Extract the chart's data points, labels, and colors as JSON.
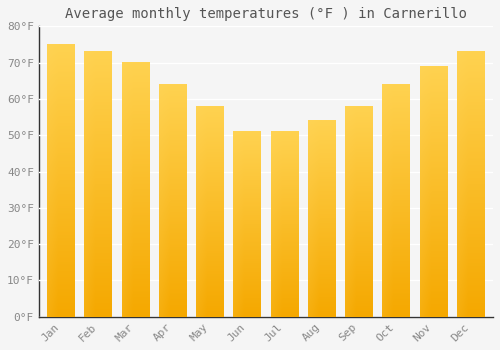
{
  "title": "Average monthly temperatures (°F ) in Carnerillo",
  "months": [
    "Jan",
    "Feb",
    "Mar",
    "Apr",
    "May",
    "Jun",
    "Jul",
    "Aug",
    "Sep",
    "Oct",
    "Nov",
    "Dec"
  ],
  "values": [
    75,
    73,
    70,
    64,
    58,
    51,
    51,
    54,
    58,
    64,
    69,
    73
  ],
  "bar_color_bottom": "#F5A800",
  "bar_color_top": "#FFD966",
  "bar_color_left": "#FFCC44",
  "ylim": [
    0,
    80
  ],
  "yticks": [
    0,
    10,
    20,
    30,
    40,
    50,
    60,
    70,
    80
  ],
  "ytick_labels": [
    "0°F",
    "10°F",
    "20°F",
    "30°F",
    "40°F",
    "50°F",
    "60°F",
    "70°F",
    "80°F"
  ],
  "background_color": "#F5F5F5",
  "grid_color": "#FFFFFF",
  "title_fontsize": 10,
  "tick_fontsize": 8,
  "font_family": "monospace",
  "tick_color": "#888888",
  "title_color": "#555555",
  "bar_width": 0.75
}
